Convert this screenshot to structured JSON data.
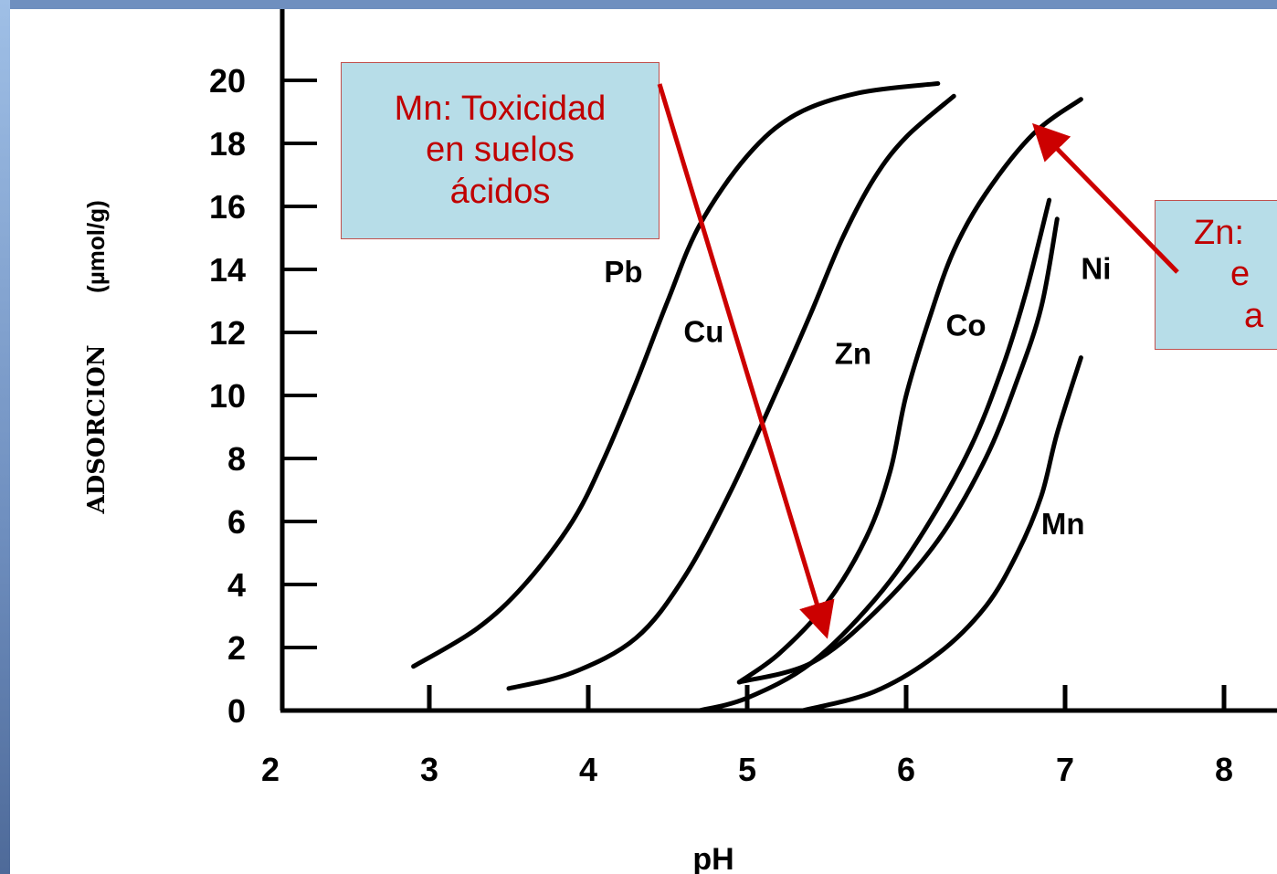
{
  "colors": {
    "frame": "#6f8fbf",
    "note_bg": "#b7dde8",
    "note_border": "#c0504d",
    "note_text": "#c00000",
    "arrow": "#cc0000",
    "curve": "#000000"
  },
  "notes": {
    "mn": {
      "lines": [
        "Mn: Toxicidad",
        "en suelos",
        "ácidos"
      ]
    },
    "zn": {
      "lines": [
        "Zn:",
        "e",
        "a"
      ]
    }
  },
  "chart_data": {
    "type": "line",
    "xlabel": "pH",
    "ylabel": "ADSORCION",
    "ylabel_unit": "(µmol/g)",
    "xlim": [
      2,
      8.3
    ],
    "ylim": [
      0,
      20.5
    ],
    "x_ticks": [
      "2",
      "3",
      "4",
      "5",
      "6",
      "7",
      "8"
    ],
    "y_ticks": [
      "0",
      "2",
      "4",
      "6",
      "8",
      "10",
      "12",
      "14",
      "16",
      "18",
      "20"
    ],
    "grid": false,
    "series": [
      {
        "name": "Pb",
        "label_at": [
          4.1,
          13.6
        ],
        "points": [
          [
            2.9,
            1.4
          ],
          [
            3.3,
            2.6
          ],
          [
            3.6,
            4.0
          ],
          [
            3.9,
            6.0
          ],
          [
            4.1,
            8.0
          ],
          [
            4.3,
            10.4
          ],
          [
            4.5,
            13.0
          ],
          [
            4.7,
            15.4
          ],
          [
            5.0,
            17.6
          ],
          [
            5.3,
            18.9
          ],
          [
            5.7,
            19.6
          ],
          [
            6.2,
            19.9
          ]
        ]
      },
      {
        "name": "Cu",
        "label_at": [
          4.6,
          11.7
        ],
        "points": [
          [
            3.5,
            0.7
          ],
          [
            3.9,
            1.2
          ],
          [
            4.3,
            2.3
          ],
          [
            4.6,
            4.2
          ],
          [
            4.9,
            7.0
          ],
          [
            5.2,
            10.3
          ],
          [
            5.4,
            12.6
          ],
          [
            5.6,
            15.0
          ],
          [
            5.8,
            16.9
          ],
          [
            6.0,
            18.2
          ],
          [
            6.3,
            19.5
          ]
        ]
      },
      {
        "name": "Zn",
        "label_at": [
          5.55,
          11.0
        ],
        "points": [
          [
            4.95,
            0.9
          ],
          [
            5.2,
            1.8
          ],
          [
            5.5,
            3.4
          ],
          [
            5.75,
            5.5
          ],
          [
            5.9,
            7.6
          ],
          [
            6.0,
            10.0
          ],
          [
            6.15,
            12.5
          ],
          [
            6.3,
            14.6
          ],
          [
            6.5,
            16.4
          ],
          [
            6.8,
            18.3
          ],
          [
            7.1,
            19.4
          ]
        ]
      },
      {
        "name": "Co",
        "label_at": [
          6.25,
          11.9
        ],
        "points": [
          [
            4.7,
            0.0
          ],
          [
            5.0,
            0.4
          ],
          [
            5.4,
            1.5
          ],
          [
            5.8,
            3.5
          ],
          [
            6.1,
            5.6
          ],
          [
            6.4,
            8.3
          ],
          [
            6.6,
            10.8
          ],
          [
            6.75,
            13.2
          ],
          [
            6.9,
            16.2
          ]
        ]
      },
      {
        "name": "Ni",
        "label_at": [
          7.1,
          13.7
        ],
        "points": [
          [
            4.95,
            0.9
          ],
          [
            5.4,
            1.5
          ],
          [
            5.8,
            3.1
          ],
          [
            6.2,
            5.4
          ],
          [
            6.5,
            8.0
          ],
          [
            6.7,
            10.5
          ],
          [
            6.85,
            12.8
          ],
          [
            6.95,
            15.6
          ]
        ]
      },
      {
        "name": "Mn",
        "label_at": [
          6.85,
          5.6
        ],
        "points": [
          [
            5.35,
            0.0
          ],
          [
            5.8,
            0.6
          ],
          [
            6.2,
            1.8
          ],
          [
            6.5,
            3.3
          ],
          [
            6.7,
            5.0
          ],
          [
            6.85,
            6.8
          ],
          [
            6.95,
            8.8
          ],
          [
            7.1,
            11.2
          ]
        ]
      }
    ]
  }
}
